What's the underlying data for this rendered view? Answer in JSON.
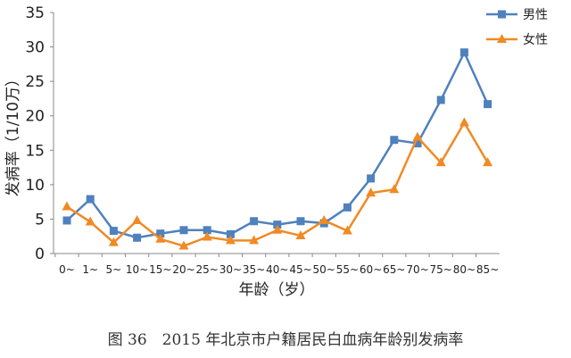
{
  "caption": "图 36　2015 年北京市户籍居民白血病年龄别发病率",
  "chart_data": {
    "type": "line",
    "title": "",
    "xlabel": "年龄（岁）",
    "ylabel": "发病率（1/10万）",
    "ylim": [
      0,
      35
    ],
    "yticks": [
      "0",
      "5",
      "10",
      "15",
      "20",
      "25",
      "30",
      "35"
    ],
    "categories": [
      "0~",
      "1~",
      "5~",
      "10~",
      "15~",
      "20~",
      "25~",
      "30~",
      "35~",
      "40~",
      "45~",
      "50~",
      "55~",
      "60~",
      "65~",
      "70~",
      "75~",
      "80~",
      "85~"
    ],
    "grid": false,
    "legend_position": "top-right",
    "series": [
      {
        "name": "男性",
        "color": "#4f81bd",
        "marker": "square",
        "values": [
          4.8,
          7.9,
          3.3,
          2.3,
          2.9,
          3.4,
          3.4,
          2.8,
          4.7,
          4.2,
          4.7,
          4.4,
          6.7,
          10.9,
          16.5,
          16.0,
          22.3,
          29.2,
          21.7
        ]
      },
      {
        "name": "女性",
        "color": "#f08a24",
        "marker": "triangle",
        "values": [
          6.8,
          4.6,
          1.6,
          4.8,
          2.1,
          1.1,
          2.4,
          1.9,
          1.9,
          3.4,
          2.6,
          4.8,
          3.3,
          8.8,
          9.3,
          16.9,
          13.2,
          19.0,
          13.2
        ]
      }
    ]
  }
}
